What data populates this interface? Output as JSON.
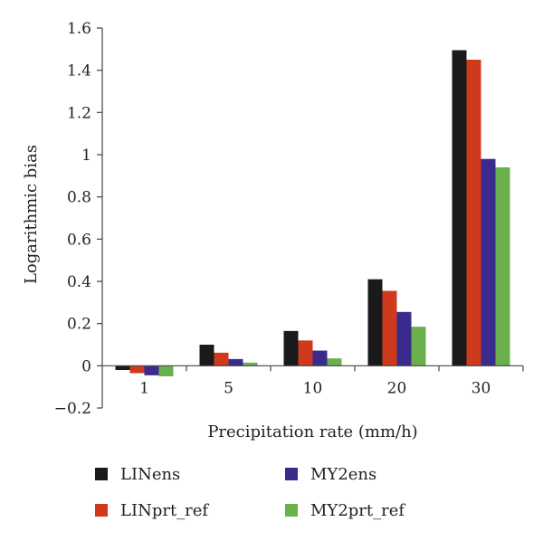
{
  "chart_data": {
    "type": "bar",
    "xlabel": "Precipitation rate (mm/h)",
    "ylabel": "Logarithmic bias",
    "categories": [
      "1",
      "5",
      "10",
      "20",
      "30"
    ],
    "ylim": [
      -0.2,
      1.6
    ],
    "yticks": [
      "−0.2",
      "0",
      "0.2",
      "0.4",
      "0.6",
      "0.8",
      "1",
      "1.2",
      "1.4",
      "1.6"
    ],
    "ytick_values": [
      -0.2,
      0,
      0.2,
      0.4,
      0.6,
      0.8,
      1.0,
      1.2,
      1.4,
      1.6
    ],
    "legend_position": "bottom",
    "grid": false,
    "series": [
      {
        "name": "LINens",
        "color": "#1a1a1a",
        "values": [
          -0.02,
          0.1,
          0.165,
          0.41,
          1.495
        ]
      },
      {
        "name": "LINprt_ref",
        "color": "#d03a1c",
        "values": [
          -0.035,
          0.062,
          0.12,
          0.355,
          1.45
        ]
      },
      {
        "name": "MY2ens",
        "color": "#3a2b8c",
        "values": [
          -0.045,
          0.032,
          0.072,
          0.255,
          0.98
        ]
      },
      {
        "name": "MY2prt_ref",
        "color": "#6ab04c",
        "values": [
          -0.05,
          0.015,
          0.035,
          0.185,
          0.94
        ]
      }
    ]
  }
}
